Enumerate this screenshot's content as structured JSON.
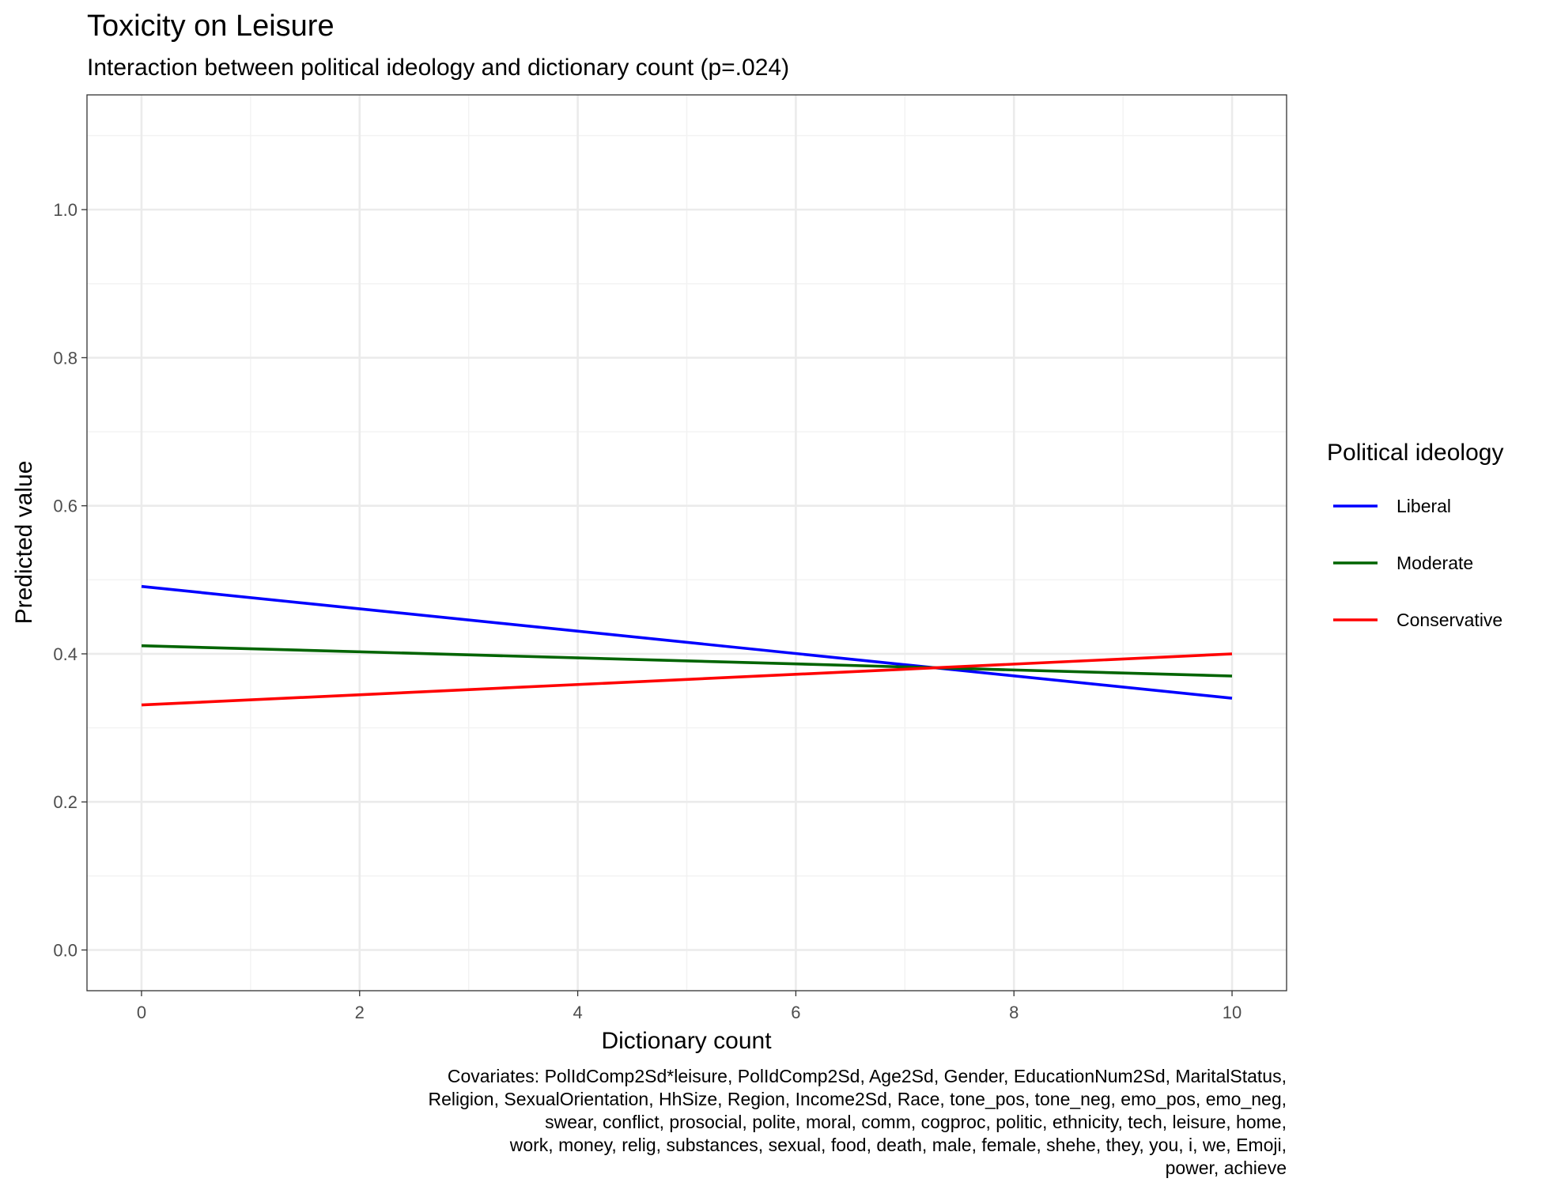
{
  "chart_data": {
    "type": "line",
    "title": "Toxicity on Leisure",
    "subtitle": "Interaction between political ideology and dictionary count (p=.024)",
    "xlabel": "Dictionary count",
    "ylabel": "Predicted value",
    "xlim": [
      -0.5,
      10.5
    ],
    "ylim": [
      -0.055,
      1.155
    ],
    "x_ticks": [
      0,
      2,
      4,
      6,
      8,
      10
    ],
    "y_ticks": [
      0.0,
      0.2,
      0.4,
      0.6,
      0.8,
      1.0
    ],
    "x_tick_labels": [
      "0",
      "2",
      "4",
      "6",
      "8",
      "10"
    ],
    "y_tick_labels": [
      "0.0",
      "0.2",
      "0.4",
      "0.6",
      "0.8",
      "1.0"
    ],
    "grid": true,
    "legend": {
      "title": "Political ideology",
      "position": "right"
    },
    "series": [
      {
        "name": "Liberal",
        "color": "#0000ff",
        "x": [
          0,
          10
        ],
        "y": [
          0.491,
          0.34
        ]
      },
      {
        "name": "Moderate",
        "color": "#006400",
        "x": [
          0,
          10
        ],
        "y": [
          0.411,
          0.37
        ]
      },
      {
        "name": "Conservative",
        "color": "#ff0000",
        "x": [
          0,
          10
        ],
        "y": [
          0.331,
          0.4
        ]
      }
    ],
    "caption": [
      "Covariates: PolIdComp2Sd*leisure, PolIdComp2Sd, Age2Sd, Gender, EducationNum2Sd, MaritalStatus,",
      "Religion, SexualOrientation, HhSize, Region, Income2Sd, Race, tone_pos, tone_neg, emo_pos, emo_neg,",
      "swear, conflict, prosocial, polite, moral, comm, cogproc, politic, ethnicity, tech, leisure, home,",
      "work, money, relig, substances, sexual, food, death, male, female, shehe, they, you, i, we, Emoji,",
      "power, achieve"
    ]
  }
}
